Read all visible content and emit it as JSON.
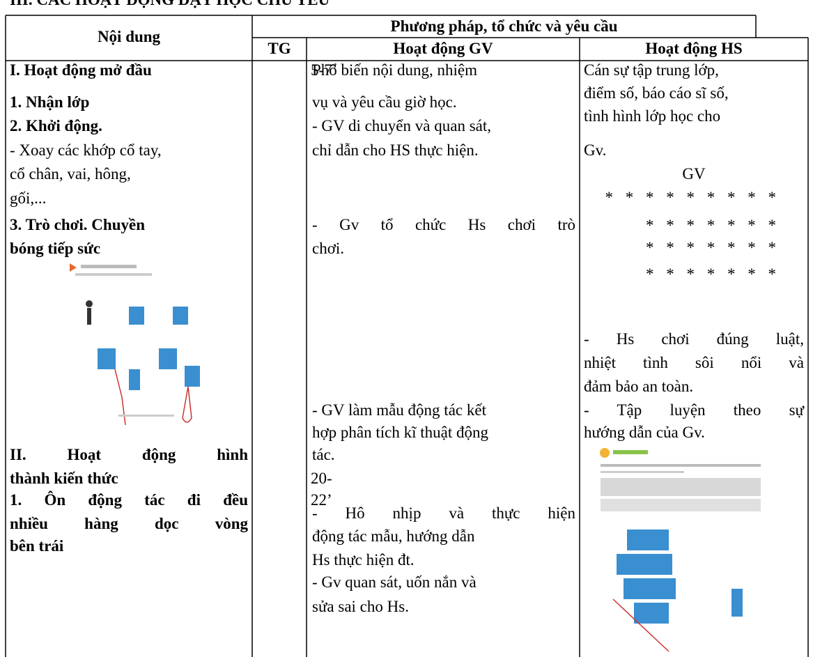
{
  "heading": "III. CÁC HOẠT ĐỘNG DẠY HỌC CHỦ YẾU",
  "table": {
    "header": {
      "content": "Nội dung",
      "methods": "Phương pháp, tổ chức và yêu cầu",
      "time": "TG",
      "teacher": "Hoạt động GV",
      "student": "Hoạt động HS"
    },
    "content": [
      "I. Hoạt động mở đầu",
      "1. Nhận lớp",
      "2. Khởi động.",
      "- Xoay các khớp cổ tay,",
      "cổ chân, vai, hông,",
      "gối,...",
      "3. Trò chơi. Chuyền",
      "bóng tiếp sức",
      "II. Hoạt động hình",
      "thành kiến thức",
      "1. Ôn động tác đi đều",
      "nhiều hàng dọc vòng",
      "bên trái"
    ],
    "time": [
      "5-7’",
      "20-",
      "22’"
    ],
    "teacher": [
      "Phổ biến nội dung, nhiệm",
      "vụ và yêu cầu giờ học.",
      "- GV di chuyển và quan sát,",
      "chỉ dẫn cho HS thực hiện.",
      "- Gv tổ chức Hs chơi trò",
      "chơi.",
      "- GV làm mẫu động tác kết",
      "hợp phân tích kĩ thuật động",
      "tác.",
      "- Hô nhịp và thực hiện",
      "động tác mẫu, hướng dẫn",
      "Hs thực hiện đt.",
      "- Gv quan sát, uốn nắn và",
      "sửa sai cho Hs."
    ],
    "student": [
      "Cán sự tập trung lớp,",
      "điểm số, báo cáo sĩ số,",
      "tình hình lớp học cho",
      "Gv.",
      "GV",
      "* * * * * * * * *",
      "* * * * * * *",
      "* * * * * * *",
      "* * * * * * *",
      "- Hs chơi đúng luật,",
      "nhiệt tình sôi nổi và",
      "đảm bảo an toàn.",
      "- Tập luyện theo sự",
      "hướng dẫn của Gv."
    ]
  }
}
